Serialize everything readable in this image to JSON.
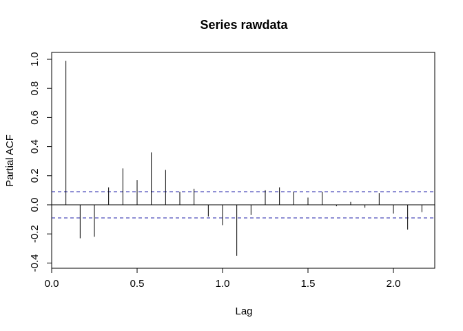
{
  "chart_data": {
    "type": "bar",
    "title": "Series  rawdata",
    "xlabel": "Lag",
    "ylabel": "Partial ACF",
    "xlim": [
      0.0,
      2.25
    ],
    "ylim": [
      -0.4,
      1.0
    ],
    "x_ticks": [
      0.0,
      0.5,
      1.0,
      1.5,
      2.0
    ],
    "x_tick_labels": [
      "0.0",
      "0.5",
      "1.0",
      "1.5",
      "2.0"
    ],
    "y_ticks": [
      -0.4,
      -0.2,
      0.0,
      0.2,
      0.4,
      0.6,
      0.8,
      1.0
    ],
    "y_tick_labels": [
      "-0.4",
      "-0.2",
      "0.0",
      "0.2",
      "0.4",
      "0.6",
      "0.8",
      "1.0"
    ],
    "confidence_bound": 0.09,
    "zero_line": 0.0,
    "x": [
      0.0833,
      0.1667,
      0.25,
      0.3333,
      0.4167,
      0.5,
      0.5833,
      0.6667,
      0.75,
      0.8333,
      0.9167,
      1.0,
      1.0833,
      1.1667,
      1.25,
      1.3333,
      1.4167,
      1.5,
      1.5833,
      1.6667,
      1.75,
      1.8333,
      1.9167,
      2.0,
      2.0833,
      2.1667
    ],
    "values": [
      0.99,
      -0.23,
      -0.22,
      0.12,
      0.25,
      0.17,
      0.36,
      0.24,
      0.09,
      0.11,
      -0.08,
      -0.14,
      -0.35,
      -0.07,
      0.1,
      0.12,
      0.09,
      0.05,
      0.09,
      -0.01,
      0.02,
      -0.02,
      0.08,
      -0.06,
      -0.17,
      -0.05
    ],
    "colors": {
      "axes": "#000000",
      "bars": "#000000",
      "confidence_lines": "#1f1fa8"
    }
  }
}
